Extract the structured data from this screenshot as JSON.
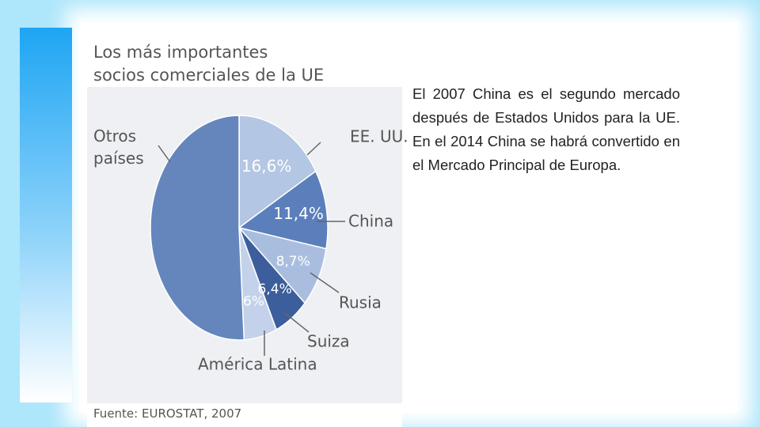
{
  "chart_data": {
    "type": "pie",
    "title": "Los más importantes\nsocios comerciales de la UE",
    "categories": [
      "EE. UU.",
      "China",
      "Rusia",
      "Suiza",
      "América Latina",
      "Otros\npaíses"
    ],
    "values": [
      16.6,
      11.4,
      8.7,
      6.4,
      6,
      50.9
    ],
    "value_labels": [
      "16,6%",
      "11,4%",
      "8,7%",
      "6,4%",
      "6%",
      null
    ],
    "colors": [
      "#b3c6e3",
      "#5a7fbb",
      "#a9bedf",
      "#3d5e9c",
      "#c3d2ea",
      "#6586bd"
    ],
    "source": "Fuente: EUROSTAT, 2007"
  },
  "body_text": "El 2007 China es el segundo mercado después de Estados Unidos para la UE. En el 2014 China se habrá convertido en el Mercado Principal de Europa."
}
